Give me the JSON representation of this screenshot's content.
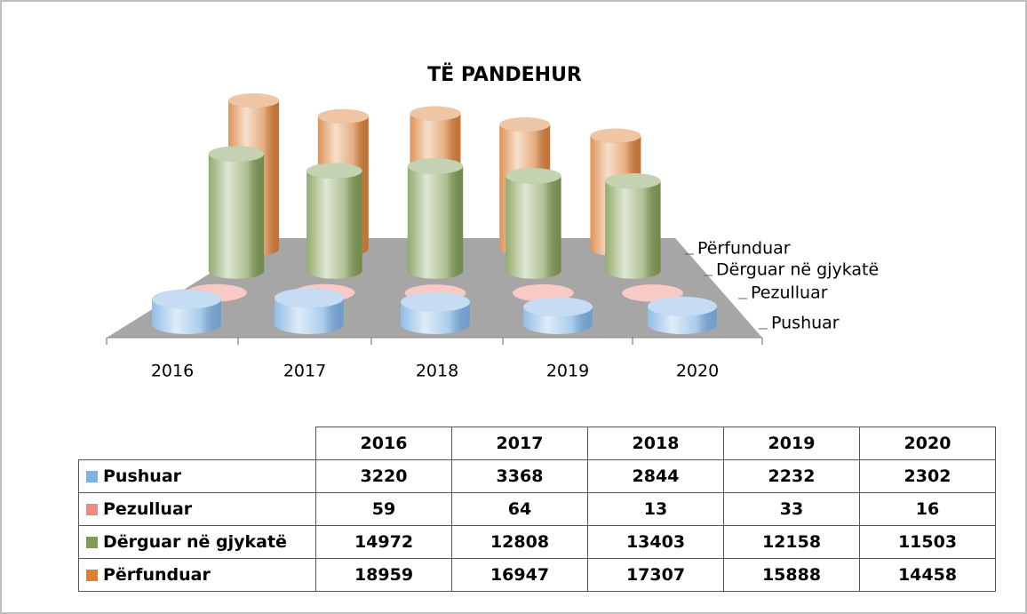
{
  "chart_data": {
    "type": "cylinder3d",
    "title": "TË PANDEHUR",
    "categories": [
      "2016",
      "2017",
      "2018",
      "2019",
      "2020"
    ],
    "series": [
      {
        "name": "Pushuar",
        "color": "#7eb2e4",
        "values": [
          3220,
          3368,
          2844,
          2232,
          2302
        ]
      },
      {
        "name": "Pezulluar",
        "color": "#f08a80",
        "values": [
          59,
          64,
          13,
          33,
          16
        ]
      },
      {
        "name": "Dërguar në gjykatë",
        "color": "#7f9c55",
        "values": [
          14972,
          12808,
          13403,
          12158,
          11503
        ]
      },
      {
        "name": "Përfunduar",
        "color": "#d9803a",
        "values": [
          18959,
          16947,
          17307,
          15888,
          14458
        ]
      }
    ]
  }
}
